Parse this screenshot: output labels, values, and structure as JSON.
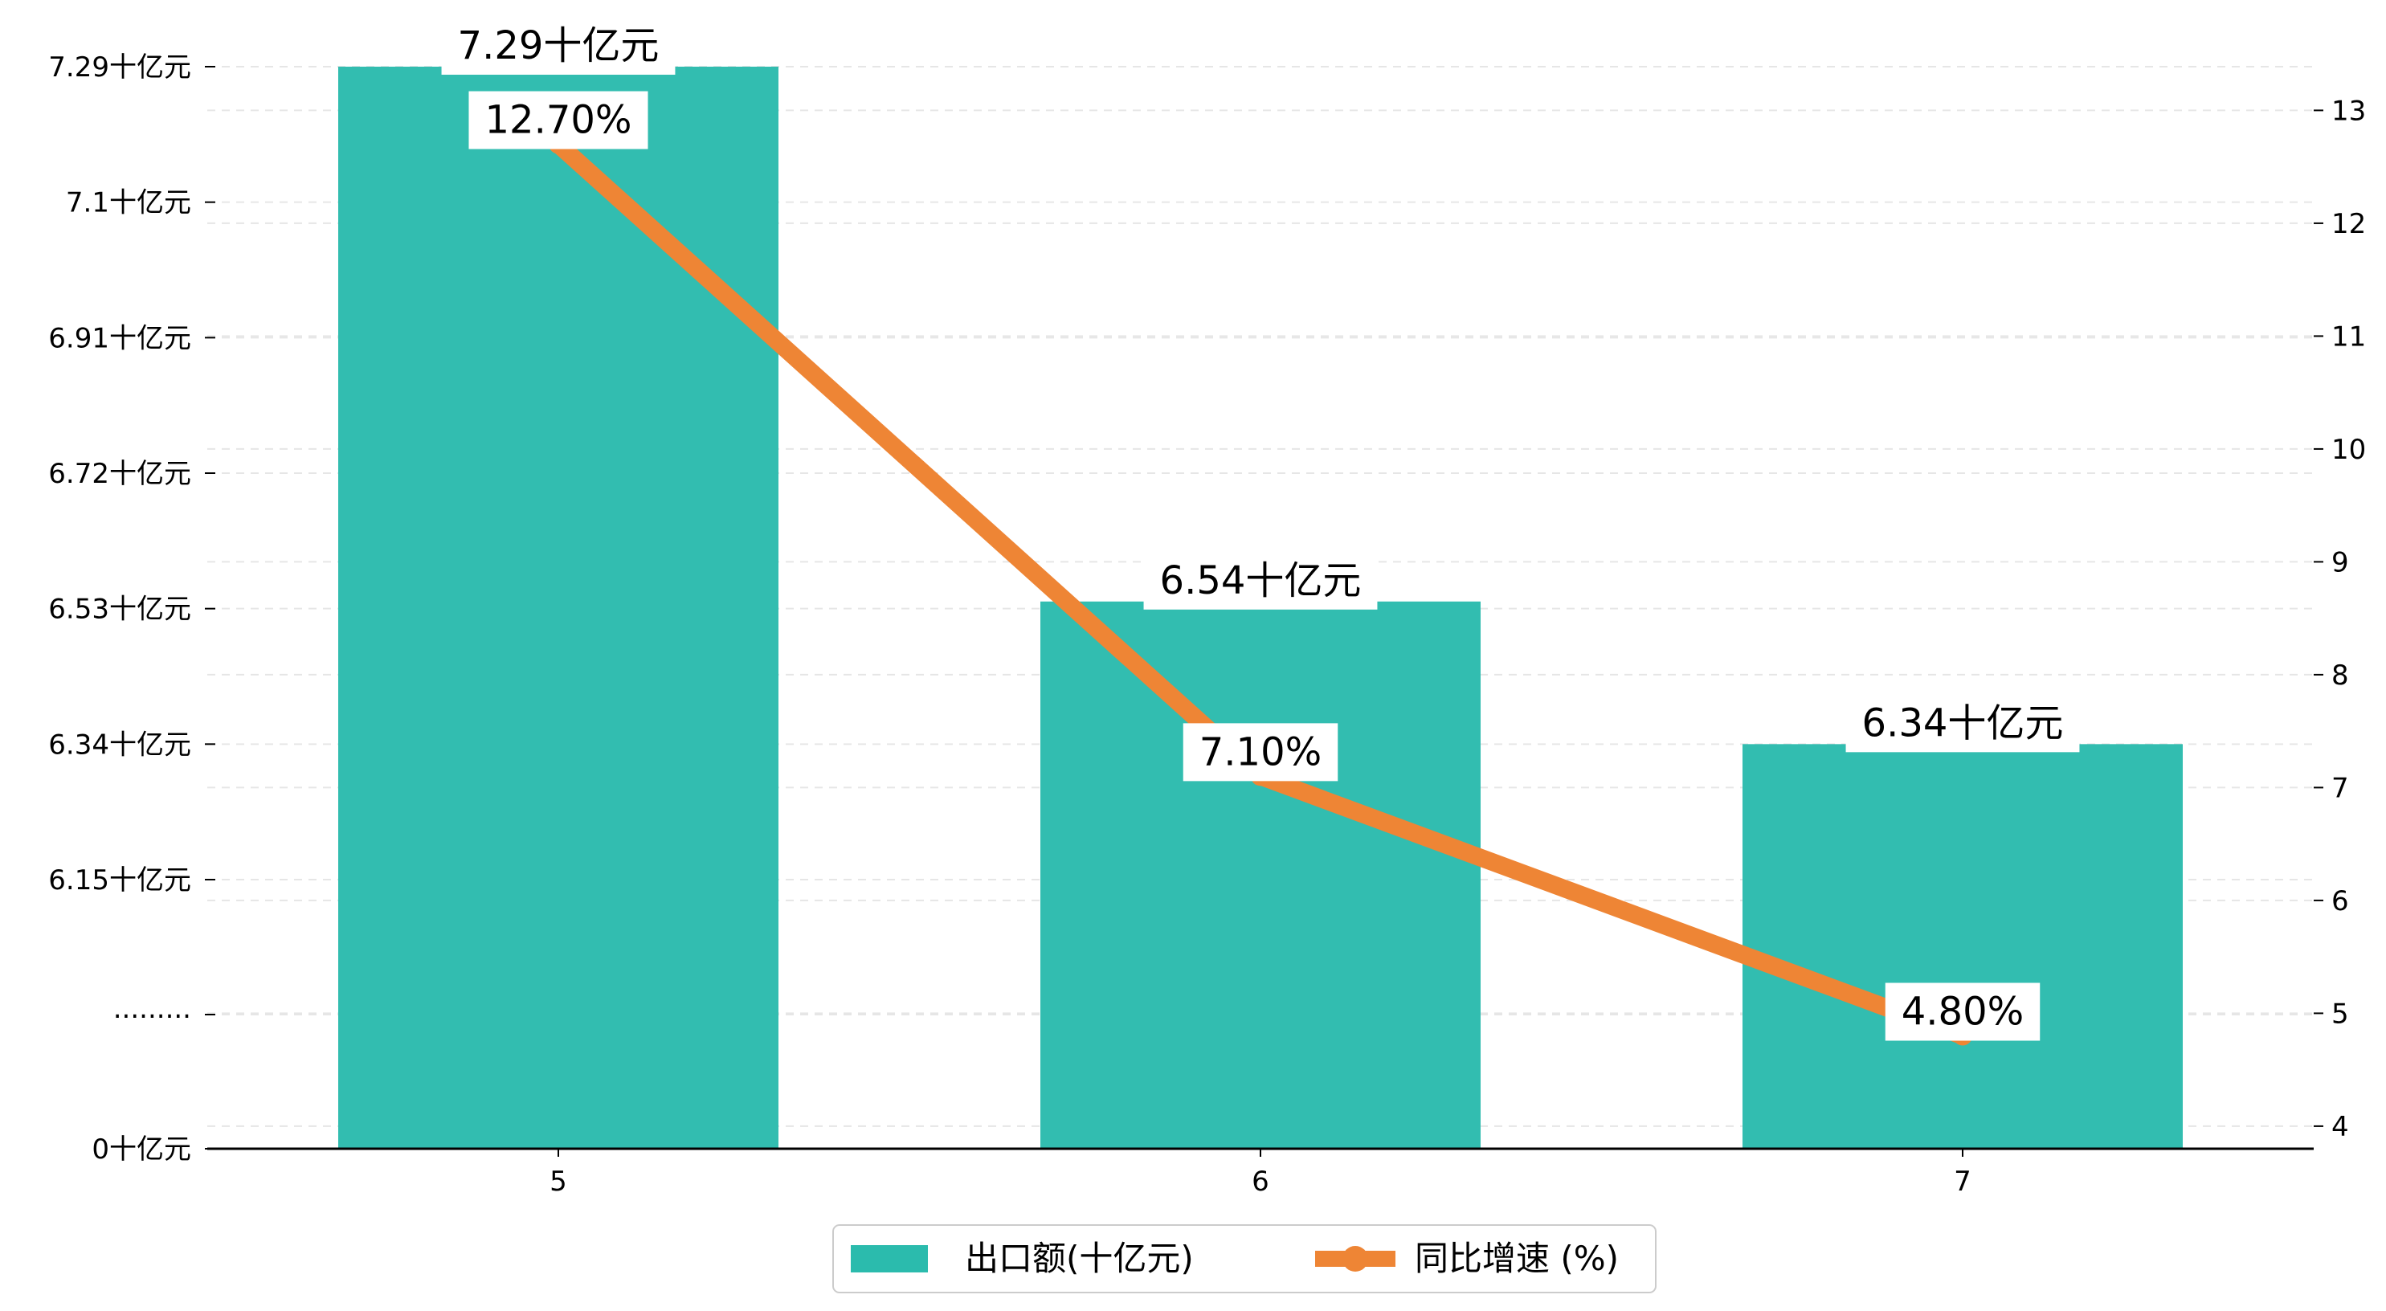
{
  "chart_data": {
    "type": "bar",
    "categories": [
      "5",
      "6",
      "7"
    ],
    "series": [
      {
        "name": "出口额(十亿元)",
        "type": "bar",
        "axis": "left",
        "values": [
          7.29,
          6.54,
          6.34
        ],
        "labels": [
          "7.29十亿元",
          "6.54十亿元",
          "6.34十亿元"
        ],
        "color": "#2bbbad"
      },
      {
        "name": "同比增速 (%)",
        "type": "line",
        "axis": "right",
        "values": [
          12.7,
          7.1,
          4.8
        ],
        "labels": [
          "12.70%",
          "7.10%",
          "4.80%"
        ],
        "color": "#ee8535"
      }
    ],
    "y_left": {
      "ticks": [
        {
          "value": 0,
          "label": "0十亿元"
        },
        {
          "value": 6.15,
          "label": "6.15十亿元"
        },
        {
          "value": 6.34,
          "label": "6.34十亿元"
        },
        {
          "value": 6.53,
          "label": "6.53十亿元"
        },
        {
          "value": 6.72,
          "label": "6.72十亿元"
        },
        {
          "value": 6.91,
          "label": "6.91十亿元"
        },
        {
          "value": 7.1,
          "label": "7.1十亿元"
        },
        {
          "value": 7.29,
          "label": "7.29十亿元"
        }
      ],
      "break_label": "........."
    },
    "y_right": {
      "range": [
        3.8,
        13.8
      ],
      "ticks": [
        4,
        5,
        6,
        7,
        8,
        9,
        10,
        11,
        12,
        13
      ]
    },
    "grid": "horizontal dashed",
    "legend_position": "bottom-center"
  }
}
